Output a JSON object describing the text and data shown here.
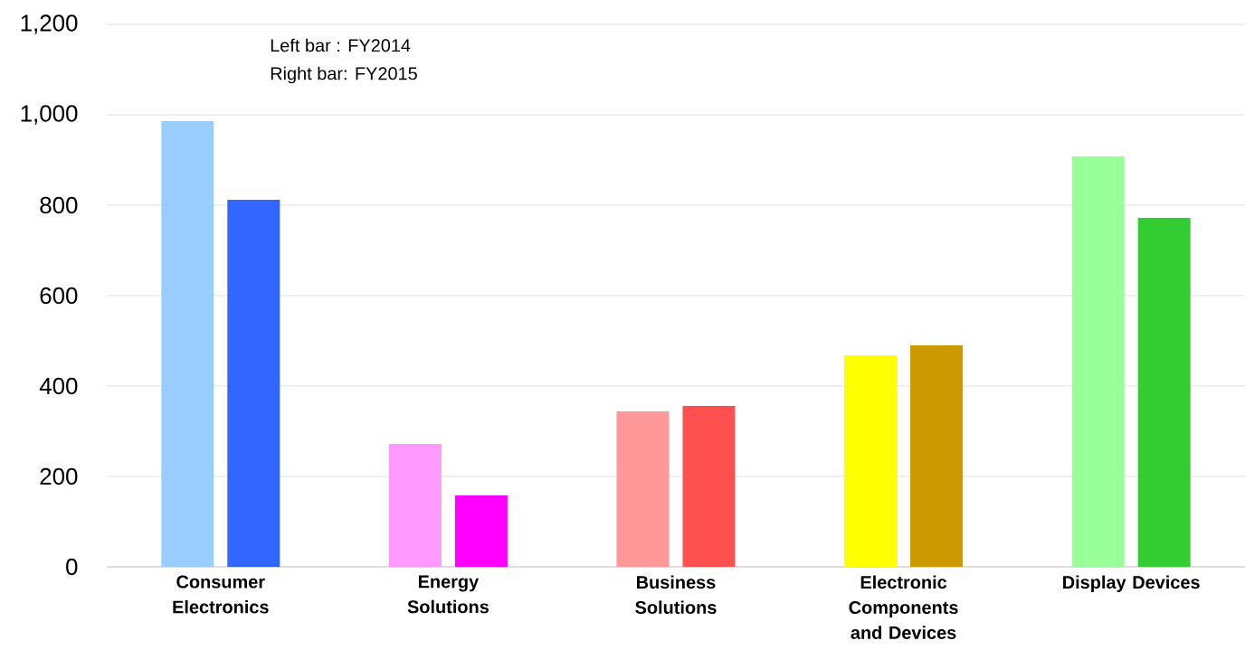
{
  "chart_data": {
    "type": "bar",
    "categories": [
      "Consumer Electronics",
      "Energy Solutions",
      "Business Solutions",
      "Electronic Components and Devices",
      "Display Devices"
    ],
    "series": [
      {
        "values": [
          986,
          272,
          344,
          468,
          908
        ],
        "colors": [
          "#99ccff",
          "#ff99ff",
          "#ff9999",
          "#ffff00",
          "#99ff99"
        ]
      },
      {
        "values": [
          812,
          158,
          356,
          490,
          772
        ],
        "colors": [
          "#3366ff",
          "#ff00ff",
          "#ff5050",
          "#cc9900",
          "#33cc33"
        ]
      }
    ],
    "ylim": [
      0,
      1200
    ],
    "yticks": [
      0,
      200,
      400,
      600,
      800,
      {
        "value": 1000,
        "label": "1,000"
      },
      {
        "value": 1200,
        "label": "1,200"
      }
    ],
    "grid": "y",
    "annotations": [
      "Left bar  : FY2014",
      "Right bar: FY2015"
    ]
  }
}
